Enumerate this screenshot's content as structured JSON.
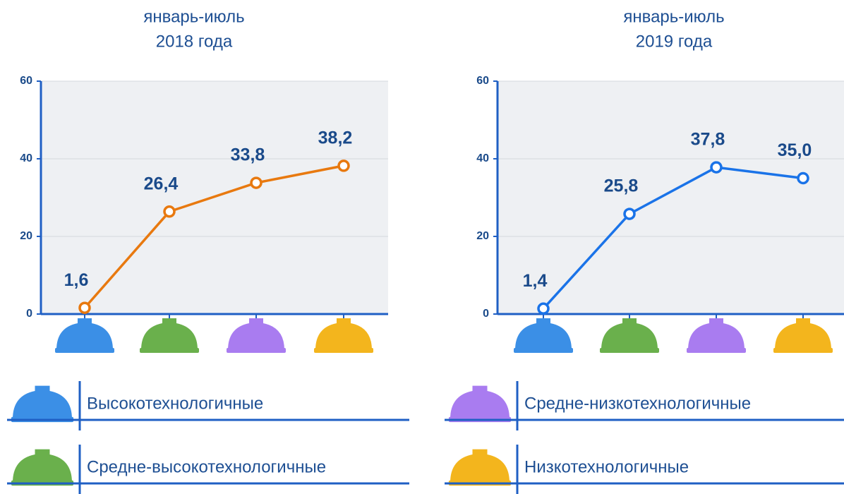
{
  "chart_data": [
    {
      "type": "line",
      "title": "январь-июль",
      "subtitle": "2018 года",
      "categories": [
        null,
        null,
        null,
        null
      ],
      "series": [
        {
          "color": "#e8790f",
          "values": [
            1.6,
            26.4,
            33.8,
            38.2
          ],
          "value_labels": [
            "1,6",
            "26,4",
            "33,8",
            "38,2"
          ]
        }
      ],
      "ylim": [
        0,
        60
      ],
      "yticks": [
        0,
        20,
        40,
        60
      ],
      "grid": true
    },
    {
      "type": "line",
      "title": "январь-июль",
      "subtitle": "2019 года",
      "categories": [
        null,
        null,
        null,
        null
      ],
      "series": [
        {
          "color": "#1a73e8",
          "values": [
            1.4,
            25.8,
            37.8,
            35.0
          ],
          "value_labels": [
            "1,4",
            "25,8",
            "37,8",
            "35,0"
          ]
        }
      ],
      "ylim": [
        0,
        60
      ],
      "yticks": [
        0,
        20,
        40,
        60
      ],
      "grid": true
    }
  ],
  "legend": [
    {
      "name": "Высокотехнологичные",
      "color": "#3b8fe6"
    },
    {
      "name": "Средне-высокотехнологичные",
      "color": "#6ab04c"
    },
    {
      "name": "Средне-низкотехнологичные",
      "color": "#a97cf0"
    },
    {
      "name": "Низкотехнологичные",
      "color": "#f3b51d"
    }
  ]
}
